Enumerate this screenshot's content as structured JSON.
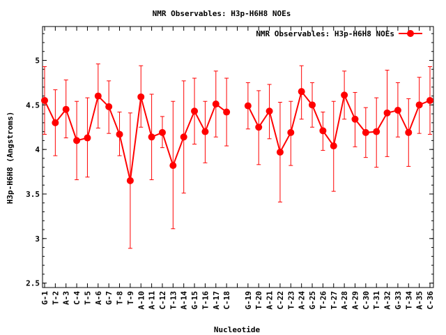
{
  "chart_data": {
    "type": "line",
    "title": "NMR Observables: H3p-H6H8 NOEs",
    "xlabel": "Nucleotide",
    "ylabel": "H3p-H6H8 (Angstroms)",
    "ylim": [
      2.45,
      5.38
    ],
    "yticks": [
      "2.5",
      "3",
      "3.5",
      "4",
      "4.5",
      "5"
    ],
    "legend_position": "top-right",
    "grid": false,
    "color": "#ff0000",
    "categories": [
      "G-1",
      "T-2",
      "A-3",
      "C-4",
      "T-5",
      "A-6",
      "G-7",
      "T-8",
      "T-9",
      "A-10",
      "A-11",
      "C-12",
      "T-13",
      "A-14",
      "G-15",
      "T-16",
      "A-17",
      "C-18",
      "",
      "G-19",
      "T-20",
      "A-21",
      "C-22",
      "T-23",
      "A-24",
      "G-25",
      "T-26",
      "T-27",
      "A-28",
      "A-29",
      "C-30",
      "T-31",
      "A-32",
      "G-33",
      "T-34",
      "A-35",
      "C-36"
    ],
    "series": [
      {
        "name": "NMR Observables: H3p-H6H8 NOEs",
        "values": [
          4.55,
          4.3,
          4.45,
          4.1,
          4.13,
          4.6,
          4.48,
          4.17,
          3.65,
          4.59,
          4.14,
          4.19,
          3.82,
          4.14,
          4.43,
          4.2,
          4.51,
          4.42,
          null,
          4.49,
          4.25,
          4.43,
          3.97,
          4.19,
          4.65,
          4.5,
          4.21,
          4.04,
          4.61,
          4.34,
          4.19,
          4.2,
          4.41,
          4.44,
          4.19,
          4.5,
          4.55
        ],
        "error_low": [
          4.17,
          3.93,
          4.13,
          3.66,
          3.69,
          4.24,
          4.18,
          3.93,
          2.89,
          4.25,
          3.66,
          4.02,
          3.11,
          3.51,
          4.06,
          3.85,
          4.14,
          4.04,
          null,
          4.23,
          3.83,
          4.12,
          3.41,
          3.82,
          4.34,
          4.25,
          3.99,
          3.53,
          4.34,
          4.03,
          3.91,
          3.8,
          3.92,
          4.14,
          3.81,
          4.18,
          4.17
        ],
        "error_high": [
          4.93,
          4.67,
          4.78,
          4.54,
          4.58,
          4.96,
          4.77,
          4.42,
          4.41,
          4.94,
          4.62,
          4.37,
          4.54,
          4.77,
          4.8,
          4.54,
          4.88,
          4.8,
          null,
          4.75,
          4.66,
          4.73,
          4.53,
          4.54,
          4.94,
          4.75,
          4.42,
          4.54,
          4.88,
          4.64,
          4.47,
          4.58,
          4.89,
          4.75,
          4.57,
          4.81,
          4.93
        ]
      }
    ]
  }
}
